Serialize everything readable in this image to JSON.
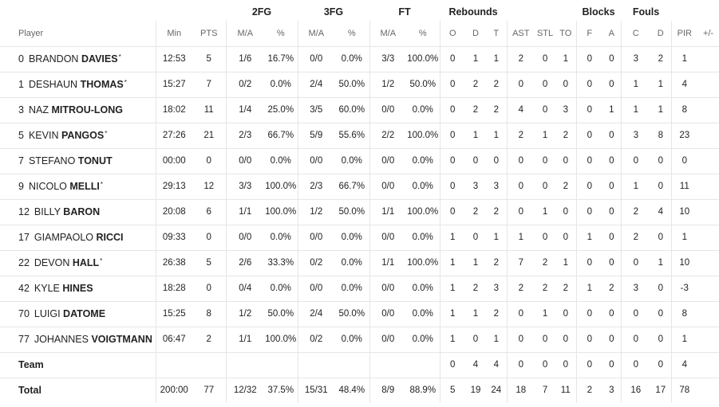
{
  "groups": {
    "fg2": "2FG",
    "fg3": "3FG",
    "ft": "FT",
    "rebounds": "Rebounds",
    "blocks": "Blocks",
    "fouls": "Fouls"
  },
  "columns": {
    "player": "Player",
    "min": "Min",
    "pts": "PTS",
    "fg2_ma": "M/A",
    "fg2_pct": "%",
    "fg3_ma": "M/A",
    "fg3_pct": "%",
    "ft_ma": "M/A",
    "ft_pct": "%",
    "reb_o": "O",
    "reb_d": "D",
    "reb_t": "T",
    "ast": "AST",
    "stl": "STL",
    "to": "TO",
    "blk_f": "F",
    "blk_a": "A",
    "foul_c": "C",
    "foul_d": "D",
    "pir": "PIR",
    "pm": "+/-"
  },
  "players": [
    {
      "num": "0",
      "first": "BRANDON",
      "last": "DAVIES",
      "star": "*",
      "min": "12:53",
      "pts": "5",
      "fg2_ma": "1/6",
      "fg2_pct": "16.7%",
      "fg3_ma": "0/0",
      "fg3_pct": "0.0%",
      "ft_ma": "3/3",
      "ft_pct": "100.0%",
      "reb_o": "0",
      "reb_d": "1",
      "reb_t": "1",
      "ast": "2",
      "stl": "0",
      "to": "1",
      "blk_f": "0",
      "blk_a": "0",
      "foul_c": "3",
      "foul_d": "2",
      "pir": "1",
      "pm": ""
    },
    {
      "num": "1",
      "first": "DESHAUN",
      "last": "THOMAS",
      "star": "*",
      "min": "15:27",
      "pts": "7",
      "fg2_ma": "0/2",
      "fg2_pct": "0.0%",
      "fg3_ma": "2/4",
      "fg3_pct": "50.0%",
      "ft_ma": "1/2",
      "ft_pct": "50.0%",
      "reb_o": "0",
      "reb_d": "2",
      "reb_t": "2",
      "ast": "0",
      "stl": "0",
      "to": "0",
      "blk_f": "0",
      "blk_a": "0",
      "foul_c": "1",
      "foul_d": "1",
      "pir": "4",
      "pm": ""
    },
    {
      "num": "3",
      "first": "NAZ",
      "last": "MITROU-LONG",
      "star": "",
      "min": "18:02",
      "pts": "11",
      "fg2_ma": "1/4",
      "fg2_pct": "25.0%",
      "fg3_ma": "3/5",
      "fg3_pct": "60.0%",
      "ft_ma": "0/0",
      "ft_pct": "0.0%",
      "reb_o": "0",
      "reb_d": "2",
      "reb_t": "2",
      "ast": "4",
      "stl": "0",
      "to": "3",
      "blk_f": "0",
      "blk_a": "1",
      "foul_c": "1",
      "foul_d": "1",
      "pir": "8",
      "pm": ""
    },
    {
      "num": "5",
      "first": "KEVIN",
      "last": "PANGOS",
      "star": "*",
      "min": "27:26",
      "pts": "21",
      "fg2_ma": "2/3",
      "fg2_pct": "66.7%",
      "fg3_ma": "5/9",
      "fg3_pct": "55.6%",
      "ft_ma": "2/2",
      "ft_pct": "100.0%",
      "reb_o": "0",
      "reb_d": "1",
      "reb_t": "1",
      "ast": "2",
      "stl": "1",
      "to": "2",
      "blk_f": "0",
      "blk_a": "0",
      "foul_c": "3",
      "foul_d": "8",
      "pir": "23",
      "pm": ""
    },
    {
      "num": "7",
      "first": "STEFANO",
      "last": "TONUT",
      "star": "",
      "min": "00:00",
      "pts": "0",
      "fg2_ma": "0/0",
      "fg2_pct": "0.0%",
      "fg3_ma": "0/0",
      "fg3_pct": "0.0%",
      "ft_ma": "0/0",
      "ft_pct": "0.0%",
      "reb_o": "0",
      "reb_d": "0",
      "reb_t": "0",
      "ast": "0",
      "stl": "0",
      "to": "0",
      "blk_f": "0",
      "blk_a": "0",
      "foul_c": "0",
      "foul_d": "0",
      "pir": "0",
      "pm": ""
    },
    {
      "num": "9",
      "first": "NICOLO",
      "last": "MELLI",
      "star": "*",
      "min": "29:13",
      "pts": "12",
      "fg2_ma": "3/3",
      "fg2_pct": "100.0%",
      "fg3_ma": "2/3",
      "fg3_pct": "66.7%",
      "ft_ma": "0/0",
      "ft_pct": "0.0%",
      "reb_o": "0",
      "reb_d": "3",
      "reb_t": "3",
      "ast": "0",
      "stl": "0",
      "to": "2",
      "blk_f": "0",
      "blk_a": "0",
      "foul_c": "1",
      "foul_d": "0",
      "pir": "11",
      "pm": ""
    },
    {
      "num": "12",
      "first": "BILLY",
      "last": "BARON",
      "star": "",
      "min": "20:08",
      "pts": "6",
      "fg2_ma": "1/1",
      "fg2_pct": "100.0%",
      "fg3_ma": "1/2",
      "fg3_pct": "50.0%",
      "ft_ma": "1/1",
      "ft_pct": "100.0%",
      "reb_o": "0",
      "reb_d": "2",
      "reb_t": "2",
      "ast": "0",
      "stl": "1",
      "to": "0",
      "blk_f": "0",
      "blk_a": "0",
      "foul_c": "2",
      "foul_d": "4",
      "pir": "10",
      "pm": ""
    },
    {
      "num": "17",
      "first": "GIAMPAOLO",
      "last": "RICCI",
      "star": "",
      "min": "09:33",
      "pts": "0",
      "fg2_ma": "0/0",
      "fg2_pct": "0.0%",
      "fg3_ma": "0/0",
      "fg3_pct": "0.0%",
      "ft_ma": "0/0",
      "ft_pct": "0.0%",
      "reb_o": "1",
      "reb_d": "0",
      "reb_t": "1",
      "ast": "1",
      "stl": "0",
      "to": "0",
      "blk_f": "1",
      "blk_a": "0",
      "foul_c": "2",
      "foul_d": "0",
      "pir": "1",
      "pm": ""
    },
    {
      "num": "22",
      "first": "DEVON",
      "last": "HALL",
      "star": "*",
      "min": "26:38",
      "pts": "5",
      "fg2_ma": "2/6",
      "fg2_pct": "33.3%",
      "fg3_ma": "0/2",
      "fg3_pct": "0.0%",
      "ft_ma": "1/1",
      "ft_pct": "100.0%",
      "reb_o": "1",
      "reb_d": "1",
      "reb_t": "2",
      "ast": "7",
      "stl": "2",
      "to": "1",
      "blk_f": "0",
      "blk_a": "0",
      "foul_c": "0",
      "foul_d": "1",
      "pir": "10",
      "pm": ""
    },
    {
      "num": "42",
      "first": "KYLE",
      "last": "HINES",
      "star": "",
      "min": "18:28",
      "pts": "0",
      "fg2_ma": "0/4",
      "fg2_pct": "0.0%",
      "fg3_ma": "0/0",
      "fg3_pct": "0.0%",
      "ft_ma": "0/0",
      "ft_pct": "0.0%",
      "reb_o": "1",
      "reb_d": "2",
      "reb_t": "3",
      "ast": "2",
      "stl": "2",
      "to": "2",
      "blk_f": "1",
      "blk_a": "2",
      "foul_c": "3",
      "foul_d": "0",
      "pir": "-3",
      "pm": ""
    },
    {
      "num": "70",
      "first": "LUIGI",
      "last": "DATOME",
      "star": "",
      "min": "15:25",
      "pts": "8",
      "fg2_ma": "1/2",
      "fg2_pct": "50.0%",
      "fg3_ma": "2/4",
      "fg3_pct": "50.0%",
      "ft_ma": "0/0",
      "ft_pct": "0.0%",
      "reb_o": "1",
      "reb_d": "1",
      "reb_t": "2",
      "ast": "0",
      "stl": "1",
      "to": "0",
      "blk_f": "0",
      "blk_a": "0",
      "foul_c": "0",
      "foul_d": "0",
      "pir": "8",
      "pm": ""
    },
    {
      "num": "77",
      "first": "JOHANNES",
      "last": "VOIGTMANN",
      "star": "",
      "min": "06:47",
      "pts": "2",
      "fg2_ma": "1/1",
      "fg2_pct": "100.0%",
      "fg3_ma": "0/2",
      "fg3_pct": "0.0%",
      "ft_ma": "0/0",
      "ft_pct": "0.0%",
      "reb_o": "1",
      "reb_d": "0",
      "reb_t": "1",
      "ast": "0",
      "stl": "0",
      "to": "0",
      "blk_f": "0",
      "blk_a": "0",
      "foul_c": "0",
      "foul_d": "0",
      "pir": "1",
      "pm": ""
    }
  ],
  "team": {
    "label": "Team",
    "min": "",
    "pts": "",
    "fg2_ma": "",
    "fg2_pct": "",
    "fg3_ma": "",
    "fg3_pct": "",
    "ft_ma": "",
    "ft_pct": "",
    "reb_o": "0",
    "reb_d": "4",
    "reb_t": "4",
    "ast": "0",
    "stl": "0",
    "to": "0",
    "blk_f": "0",
    "blk_a": "0",
    "foul_c": "0",
    "foul_d": "0",
    "pir": "4",
    "pm": ""
  },
  "total": {
    "label": "Total",
    "min": "200:00",
    "pts": "77",
    "fg2_ma": "12/32",
    "fg2_pct": "37.5%",
    "fg3_ma": "15/31",
    "fg3_pct": "48.4%",
    "ft_ma": "8/9",
    "ft_pct": "88.9%",
    "reb_o": "5",
    "reb_d": "19",
    "reb_t": "24",
    "ast": "18",
    "stl": "7",
    "to": "11",
    "blk_f": "2",
    "blk_a": "3",
    "foul_c": "16",
    "foul_d": "17",
    "pir": "78",
    "pm": ""
  }
}
